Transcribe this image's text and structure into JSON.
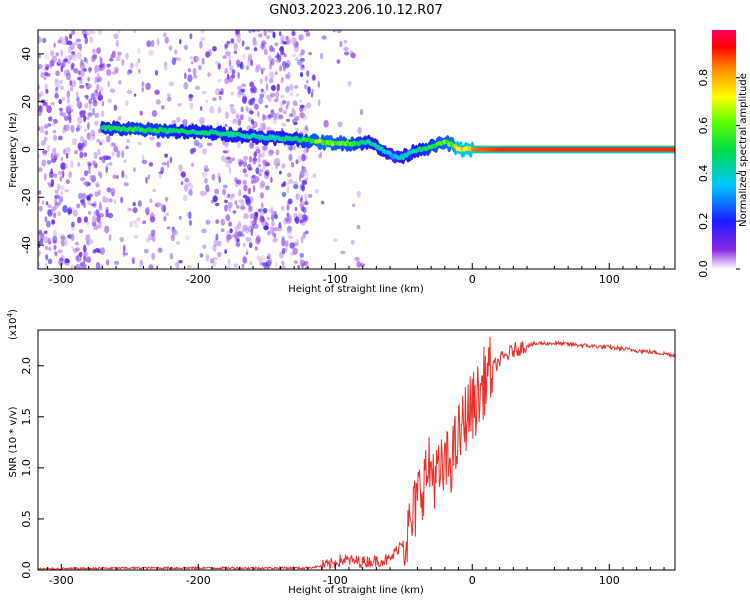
{
  "title": "GN03.2023.206.10.12.R07",
  "chart_data": [
    {
      "type": "heatmap",
      "xlabel": "Height of straight line (km)",
      "ylabel": "Frequency (Hz)",
      "xlim": [
        -317,
        148
      ],
      "ylim": [
        -50,
        50
      ],
      "xticks": [
        -300,
        -200,
        -100,
        0,
        100
      ],
      "xtick_labels": [
        "-300",
        "-200",
        "-100",
        "0",
        "100"
      ],
      "yticks": [
        -40,
        -20,
        0,
        20,
        40
      ],
      "ytick_labels": [
        "-40",
        "-20",
        "0",
        "20",
        "40"
      ],
      "colorbar": {
        "label": "Normalized spectral amplitude",
        "range": [
          0,
          1
        ],
        "ticks": [
          0.0,
          0.2,
          0.4,
          0.6,
          0.8
        ],
        "tick_labels": [
          "0.0",
          "0.2",
          "0.4",
          "0.6",
          "0.8"
        ],
        "colormap": "rainbow (white-purple-blue-cyan-green-yellow-red-magenta)"
      },
      "ridge": {
        "x": [
          -270,
          -250,
          -230,
          -210,
          -190,
          -170,
          -150,
          -130,
          -110,
          -90,
          -75,
          -65,
          -58,
          -50,
          -40,
          -30,
          -20,
          -15,
          -10,
          0,
          20,
          60,
          100,
          148
        ],
        "frequency": [
          9,
          8.5,
          8,
          7.5,
          7,
          6,
          5,
          4.5,
          3,
          2.5,
          3,
          0,
          -3,
          -3,
          0,
          1,
          3,
          2,
          0,
          0,
          0,
          0,
          0,
          0
        ],
        "amplitude": [
          0.45,
          0.5,
          0.5,
          0.45,
          0.45,
          0.45,
          0.4,
          0.45,
          0.6,
          0.55,
          0.45,
          0.4,
          0.35,
          0.4,
          0.45,
          0.5,
          0.6,
          0.6,
          0.8,
          0.85,
          0.9,
          0.9,
          0.9,
          0.9
        ]
      },
      "noise_regions": [
        {
          "x_range": [
            -317,
            -270
          ],
          "density": "dense"
        },
        {
          "x_range": [
            -270,
            -180
          ],
          "density": "sparse"
        },
        {
          "x_range": [
            -180,
            -120
          ],
          "density": "dense"
        },
        {
          "x_range": [
            -120,
            -80
          ],
          "density": "very sparse"
        }
      ]
    },
    {
      "type": "line",
      "xlabel": "Height of straight line (km)",
      "ylabel": "SNR (10 * v/v)",
      "y_scale_label": "(x10",
      "y_scale_exponent": "4",
      "y_scale_close": ")",
      "xlim": [
        -317,
        148
      ],
      "ylim": [
        0,
        2.35
      ],
      "xticks": [
        -300,
        -200,
        -100,
        0,
        100
      ],
      "xtick_labels": [
        "-300",
        "-200",
        "-100",
        "0",
        "100"
      ],
      "yticks": [
        0.0,
        0.5,
        1.0,
        1.5,
        2.0
      ],
      "ytick_labels": [
        "0.0",
        "0.5",
        "1.0",
        "1.5",
        "2.0"
      ],
      "color": "#e8312a",
      "series": [
        {
          "x": [
            -317,
            -250,
            -200,
            -150,
            -120,
            -105,
            -95,
            -80,
            -60,
            -50,
            -45,
            -40,
            -35,
            -30,
            -25,
            -20,
            -15,
            -12,
            -10,
            -8,
            -5,
            0,
            5,
            10,
            20,
            30,
            40,
            50,
            60,
            80,
            100,
            120,
            140,
            148
          ],
          "values": [
            0.01,
            0.02,
            0.02,
            0.02,
            0.02,
            0.05,
            0.1,
            0.08,
            0.1,
            0.3,
            0.4,
            0.7,
            0.9,
            1.0,
            0.9,
            1.0,
            1.1,
            1.2,
            1.3,
            1.35,
            1.5,
            1.6,
            1.7,
            1.9,
            2.05,
            2.15,
            2.2,
            2.22,
            2.22,
            2.2,
            2.18,
            2.15,
            2.12,
            2.1
          ]
        }
      ]
    }
  ]
}
